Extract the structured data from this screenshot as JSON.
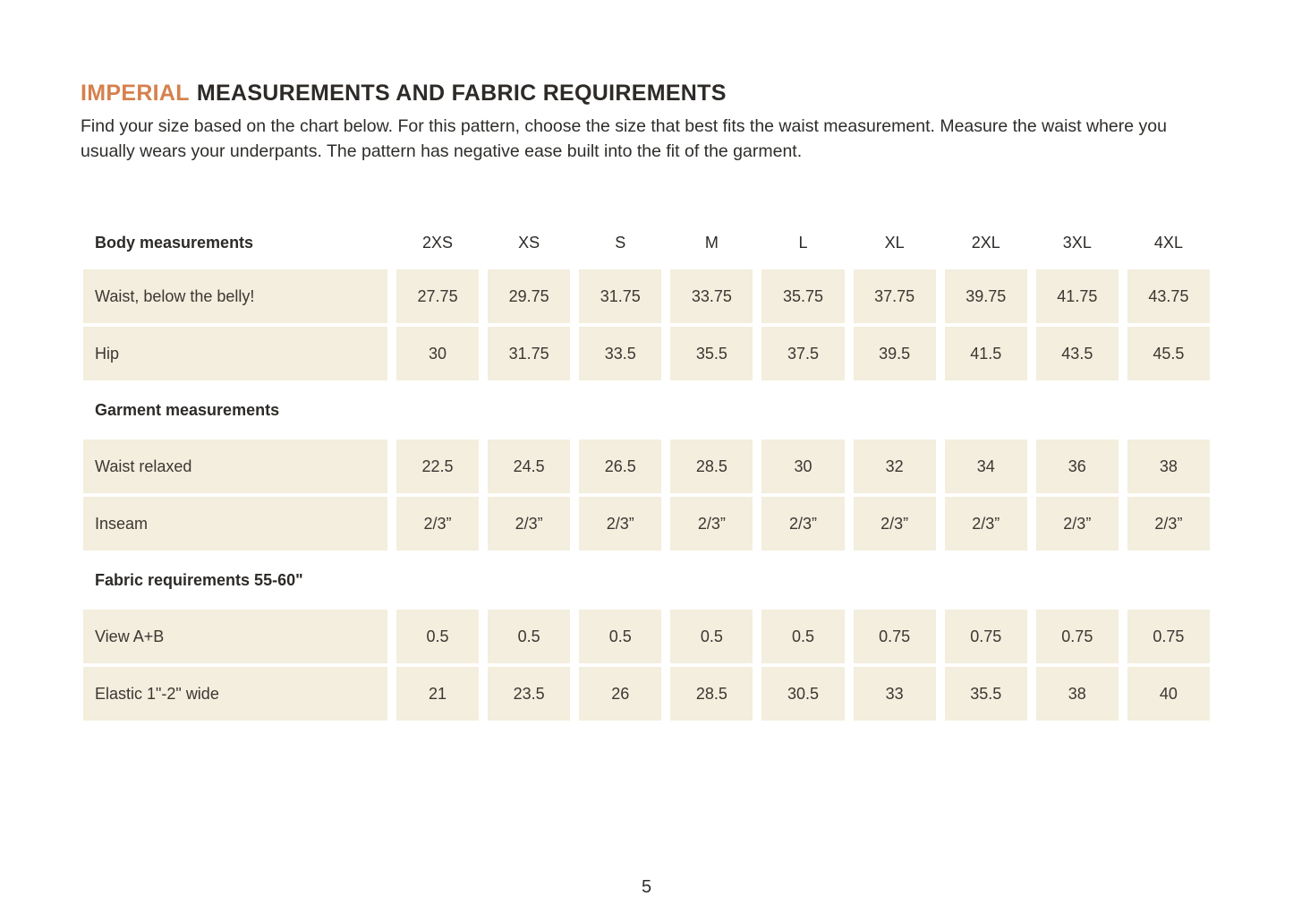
{
  "header": {
    "title_highlight": "IMPERIAL",
    "title_rest": "MEASUREMENTS AND FABRIC REQUIREMENTS",
    "intro": "Find your size based on the chart below. For this pattern, choose the size that best fits the waist measurement. Measure the waist where you usually wears your underpants. The pattern has negative ease built into the fit of the garment."
  },
  "table": {
    "corner_label": "Body measurements",
    "size_columns": [
      "2XS",
      "XS",
      "S",
      "M",
      "L",
      "XL",
      "2XL",
      "3XL",
      "4XL"
    ],
    "rows": [
      {
        "type": "data",
        "label": "Waist, below the belly!",
        "values": [
          "27.75",
          "29.75",
          "31.75",
          "33.75",
          "35.75",
          "37.75",
          "39.75",
          "41.75",
          "43.75"
        ]
      },
      {
        "type": "data",
        "label": "Hip",
        "values": [
          "30",
          "31.75",
          "33.5",
          "35.5",
          "37.5",
          "39.5",
          "41.5",
          "43.5",
          "45.5"
        ]
      },
      {
        "type": "section",
        "label": "Garment measurements"
      },
      {
        "type": "data",
        "label": "Waist relaxed",
        "values": [
          "22.5",
          "24.5",
          "26.5",
          "28.5",
          "30",
          "32",
          "34",
          "36",
          "38"
        ]
      },
      {
        "type": "data",
        "label": "Inseam",
        "values": [
          "2/3”",
          "2/3”",
          "2/3”",
          "2/3”",
          "2/3”",
          "2/3”",
          "2/3”",
          "2/3”",
          "2/3”"
        ]
      },
      {
        "type": "section",
        "label": "Fabric requirements 55-60\""
      },
      {
        "type": "data",
        "label": "View A+B",
        "values": [
          "0.5",
          "0.5",
          "0.5",
          "0.5",
          "0.5",
          "0.75",
          "0.75",
          "0.75",
          "0.75"
        ]
      },
      {
        "type": "data",
        "label": "Elastic 1\"-2\" wide",
        "values": [
          "21",
          "23.5",
          "26",
          "28.5",
          "30.5",
          "33",
          "35.5",
          "38",
          "40"
        ]
      }
    ]
  },
  "footer": {
    "page_number": "5"
  },
  "colors": {
    "accent_orange": "#d5814e",
    "cell_beige": "#f3eedd",
    "text_dark": "#2d2a27"
  }
}
